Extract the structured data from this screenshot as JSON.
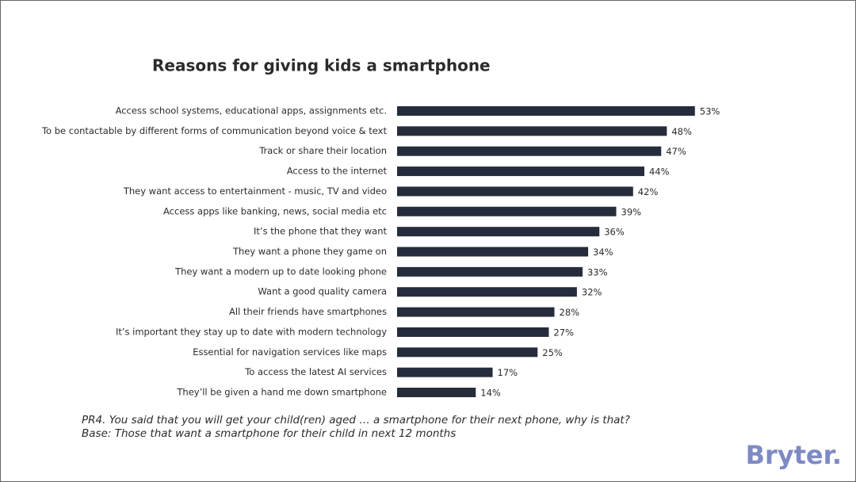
{
  "chart_data": {
    "type": "bar",
    "orientation": "horizontal",
    "title": "Reasons for giving kids a smartphone",
    "categories": [
      "Access school systems, educational apps, assignments etc.",
      "To be contactable by different forms of communication beyond voice & text",
      "Track or share their location",
      "Access to the internet",
      "They want access to entertainment - music, TV and video",
      "Access apps like banking, news, social media etc",
      "It’s the phone that they want",
      "They want a phone they game on",
      "They want a modern up to date looking phone",
      "Want a good quality camera",
      "All their friends have smartphones",
      "It’s important they stay up to date with modern technology",
      "Essential for navigation services like maps",
      "To access the latest AI services",
      "They’ll be given a hand me down smartphone"
    ],
    "values": [
      53,
      48,
      47,
      44,
      42,
      39,
      36,
      34,
      33,
      32,
      28,
      27,
      25,
      17,
      14
    ],
    "value_labels": [
      "53%",
      "48%",
      "47%",
      "44%",
      "42%",
      "39%",
      "36%",
      "34%",
      "33%",
      "32%",
      "28%",
      "27%",
      "25%",
      "17%",
      "14%"
    ],
    "color": "#252c3b"
  },
  "footnotes": [
    "PR4. You said that you will get your child(ren) aged … a smartphone for their next phone, why is that?",
    "Base: Those that want a smartphone for their child in next 12 months"
  ],
  "logo": "Bryter."
}
